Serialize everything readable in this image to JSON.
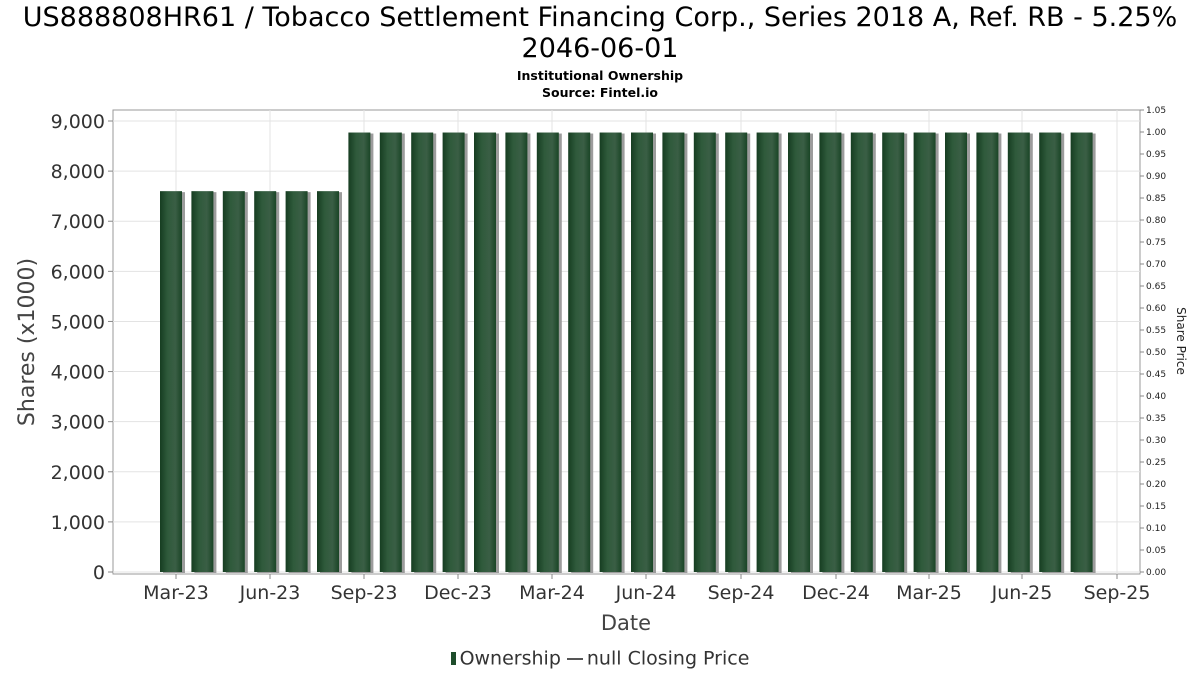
{
  "title": "US888808HR61 / Tobacco Settlement Financing Corp., Series 2018 A, Ref. RB - 5.25% 2046-06-01",
  "subtitle": "Institutional Ownership",
  "source": "Source: Fintel.io",
  "legend": {
    "ownership": "Ownership",
    "price": "null Closing Price"
  },
  "colors": {
    "bar": "#1e4d2b",
    "bar_highlight": "#3a5e45",
    "grid": "#e3e3e3"
  },
  "chart_data": {
    "type": "bar",
    "xlabel": "Date",
    "ylabel": "Shares (x1000)",
    "y2label": "Share Price",
    "ylim": [
      0,
      9200
    ],
    "y2lim": [
      0,
      1.05
    ],
    "grid": true,
    "legend_position": "bottom",
    "yticks": [
      "0",
      "1,000",
      "2,000",
      "3,000",
      "4,000",
      "5,000",
      "6,000",
      "7,000",
      "8,000",
      "9,000"
    ],
    "y2ticks": [
      "0.00",
      "0.05",
      "0.10",
      "0.15",
      "0.20",
      "0.25",
      "0.30",
      "0.35",
      "0.40",
      "0.45",
      "0.50",
      "0.55",
      "0.60",
      "0.65",
      "0.70",
      "0.75",
      "0.80",
      "0.85",
      "0.90",
      "0.95",
      "1.00",
      "1.05"
    ],
    "xticks": [
      "Mar-23",
      "Jun-23",
      "Sep-23",
      "Dec-23",
      "Mar-24",
      "Jun-24",
      "Sep-24",
      "Dec-24",
      "Mar-25",
      "Jun-25",
      "Sep-25"
    ],
    "x": [
      "2023-02-28",
      "2023-03-31",
      "2023-04-30",
      "2023-05-31",
      "2023-06-30",
      "2023-07-31",
      "2023-08-31",
      "2023-09-30",
      "2023-10-31",
      "2023-11-30",
      "2023-12-31",
      "2024-01-31",
      "2024-02-29",
      "2024-03-31",
      "2024-04-30",
      "2024-05-31",
      "2024-06-30",
      "2024-07-31",
      "2024-08-31",
      "2024-09-30",
      "2024-10-31",
      "2024-11-30",
      "2024-12-31",
      "2025-01-31",
      "2025-02-28",
      "2025-03-31",
      "2025-04-30",
      "2025-05-31",
      "2025-06-30",
      "2025-07-31"
    ],
    "series": [
      {
        "name": "Ownership",
        "values": [
          7600,
          7600,
          7600,
          7600,
          7600,
          7600,
          8770,
          8770,
          8770,
          8770,
          8770,
          8770,
          8770,
          8770,
          8770,
          8770,
          8770,
          8770,
          8770,
          8770,
          8770,
          8770,
          8770,
          8770,
          8770,
          8770,
          8770,
          8770,
          8770,
          8770
        ]
      }
    ]
  }
}
